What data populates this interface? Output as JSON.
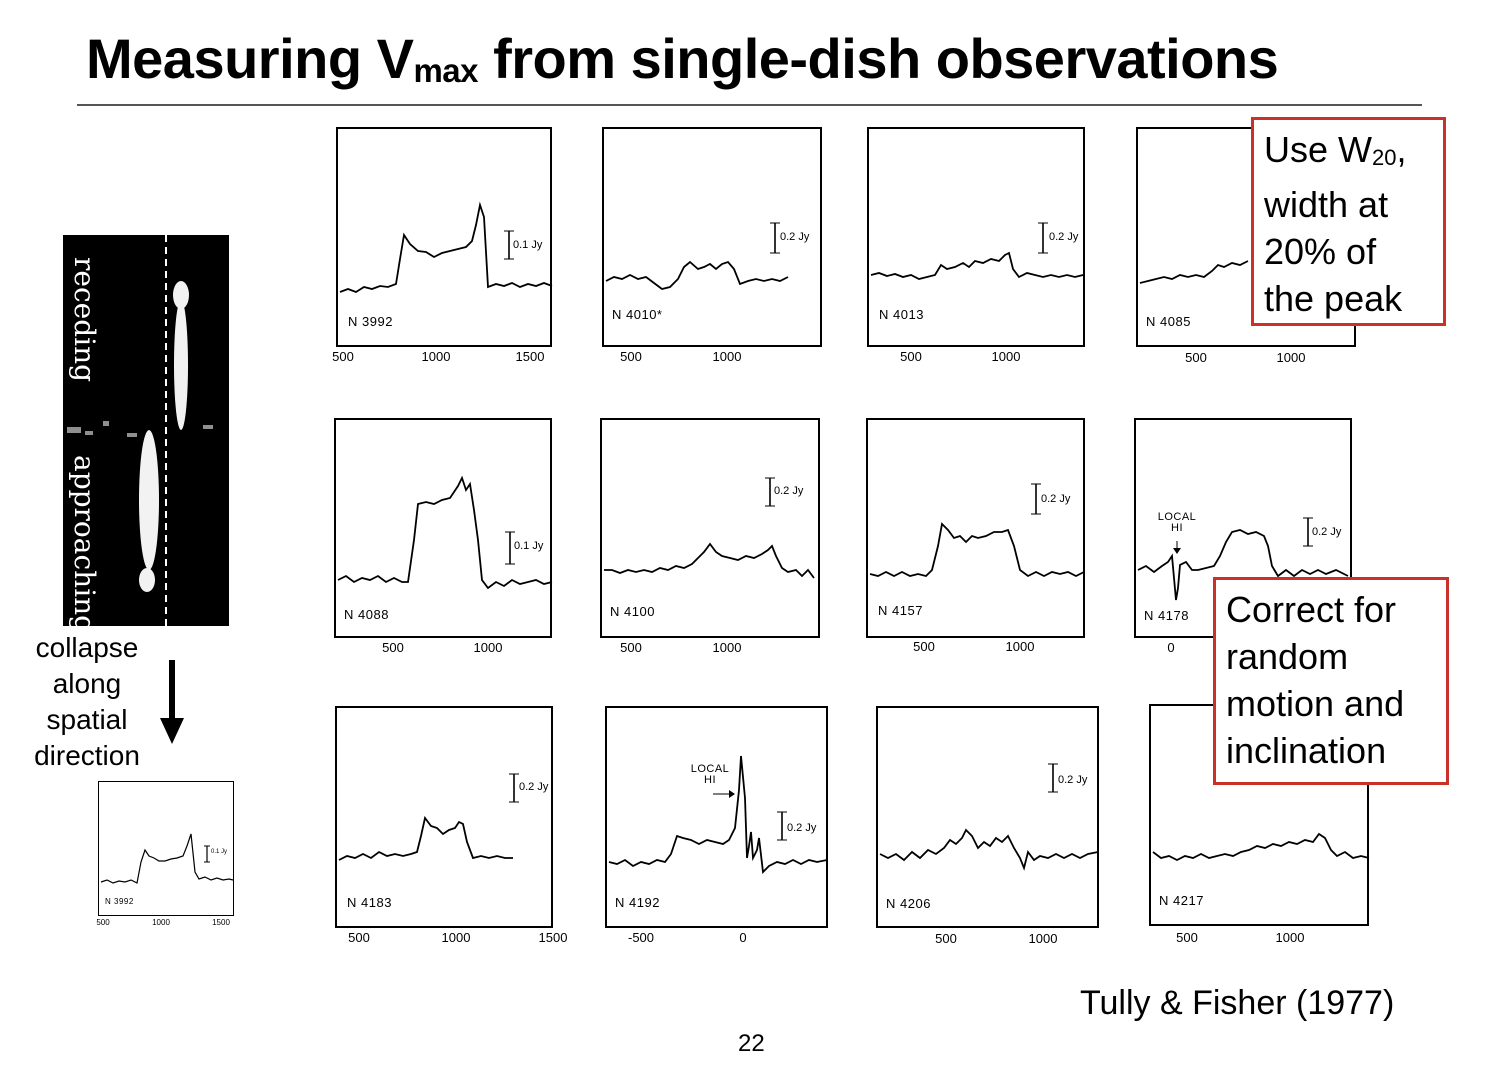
{
  "slide": {
    "title_main": "Measuring V",
    "title_sub": "max",
    "title_rest": " from single-dish observations",
    "page_number": "22",
    "credit": "Tully & Fisher (1977)"
  },
  "pv_diagram": {
    "receding_label": "receding",
    "approaching_label": "approaching"
  },
  "collapse_text": [
    "collapse",
    "along",
    "spatial",
    "direction"
  ],
  "callouts": {
    "w20": {
      "line1_a": "Use W",
      "line1_sub": "20",
      "line1_b": ",",
      "line2": "width at",
      "line3": "20% of",
      "line4": "the peak"
    },
    "correct": {
      "line1": "Correct for",
      "line2": "random",
      "line3": "motion and",
      "line4": "inclination"
    }
  },
  "panels": [
    {
      "id": "n3992",
      "label": "N 3992",
      "scale": "0.1 Jy",
      "ticks": [
        "500",
        "1000",
        "1500"
      ]
    },
    {
      "id": "n4010",
      "label": "N 4010*",
      "scale": "0.2 Jy",
      "ticks": [
        "500",
        "1000"
      ]
    },
    {
      "id": "n4013",
      "label": "N 4013",
      "scale": "0.2 Jy",
      "ticks": [
        "500",
        "1000"
      ]
    },
    {
      "id": "n4085",
      "label": "N 4085",
      "scale": "",
      "ticks": [
        "500",
        "1000"
      ]
    },
    {
      "id": "n4088",
      "label": "N 4088",
      "scale": "0.1 Jy",
      "ticks": [
        "500",
        "1000"
      ]
    },
    {
      "id": "n4100",
      "label": "N 4100",
      "scale": "0.2 Jy",
      "ticks": [
        "500",
        "1000"
      ]
    },
    {
      "id": "n4157",
      "label": "N 4157",
      "scale": "0.2 Jy",
      "ticks": [
        "500",
        "1000"
      ]
    },
    {
      "id": "n4178",
      "label": "N 4178",
      "scale": "0.2 Jy",
      "ticks": [
        "0"
      ],
      "local": [
        "LOCAL",
        "HI"
      ]
    },
    {
      "id": "n4183",
      "label": "N 4183",
      "scale": "0.2 Jy",
      "ticks": [
        "500",
        "1000",
        "1500"
      ]
    },
    {
      "id": "n4192",
      "label": "N 4192",
      "scale": "0.2 Jy",
      "ticks": [
        "-500",
        "0"
      ],
      "local": [
        "LOCAL",
        "HI"
      ]
    },
    {
      "id": "n4206",
      "label": "N 4206",
      "scale": "0.2 Jy",
      "ticks": [
        "500",
        "1000"
      ]
    },
    {
      "id": "n4217",
      "label": "N 4217",
      "scale": "",
      "ticks": [
        "500",
        "1000"
      ]
    },
    {
      "id": "mini",
      "label": "N 3992",
      "scale": "0.1 Jy",
      "ticks": [
        "500",
        "1000",
        "1500"
      ]
    }
  ]
}
